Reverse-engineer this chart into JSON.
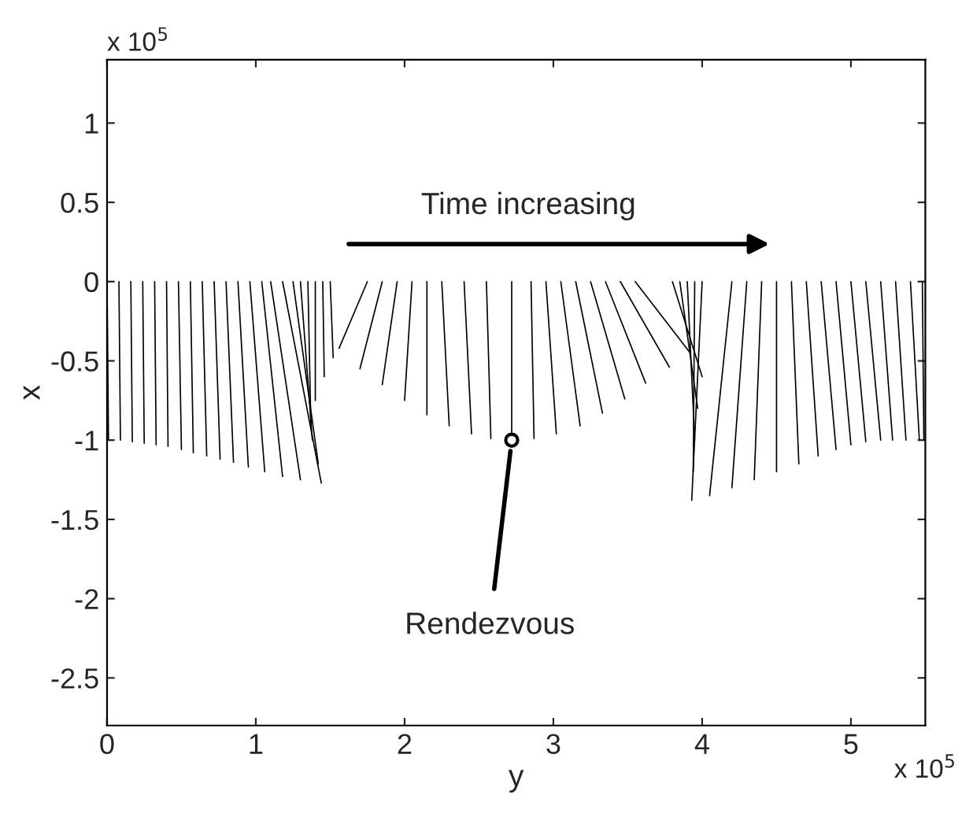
{
  "chart_data": {
    "type": "line",
    "xlabel": "y",
    "ylabel": "x",
    "xlim": [
      0,
      5.5
    ],
    "ylim": [
      -2.8,
      1.4
    ],
    "xticks": [
      0,
      1,
      2,
      3,
      4,
      5
    ],
    "yticks": [
      1,
      0.5,
      0,
      -0.5,
      -1,
      -1.5,
      -2,
      -2.5
    ],
    "marker": "none",
    "line_style": "solid",
    "annotations": [
      "Time increasing",
      {
        "text": "Rendezvous",
        "x": 2.72,
        "y": -1.0
      },
      "x 10$^{5}$",
      "x 10$^{5}$"
    ],
    "series": [
      {
        "color": "#000000",
        "x": [
          0,
          0.01
        ],
        "values": [
          0,
          -1.0
        ]
      },
      {
        "color": "#000000",
        "x": [
          0.08,
          0.09
        ],
        "values": [
          0,
          -1.0
        ]
      },
      {
        "color": "#000000",
        "x": [
          0.16,
          0.17
        ],
        "values": [
          0,
          -1.01
        ]
      },
      {
        "color": "#000000",
        "x": [
          0.24,
          0.25
        ],
        "values": [
          0,
          -1.02
        ]
      },
      {
        "color": "#000000",
        "x": [
          0.32,
          0.33
        ],
        "values": [
          0,
          -1.03
        ]
      },
      {
        "color": "#000000",
        "x": [
          0.4,
          0.41
        ],
        "values": [
          0,
          -1.04
        ]
      },
      {
        "color": "#000000",
        "x": [
          0.48,
          0.5
        ],
        "values": [
          0,
          -1.06
        ]
      },
      {
        "color": "#000000",
        "x": [
          0.56,
          0.58
        ],
        "values": [
          0,
          -1.08
        ]
      },
      {
        "color": "#000000",
        "x": [
          0.64,
          0.67
        ],
        "values": [
          0,
          -1.1
        ]
      },
      {
        "color": "#000000",
        "x": [
          0.72,
          0.76
        ],
        "values": [
          0,
          -1.12
        ]
      },
      {
        "color": "#000000",
        "x": [
          0.8,
          0.85
        ],
        "values": [
          0,
          -1.14
        ]
      },
      {
        "color": "#000000",
        "x": [
          0.88,
          0.95
        ],
        "values": [
          0,
          -1.17
        ]
      },
      {
        "color": "#000000",
        "x": [
          0.96,
          1.06
        ],
        "values": [
          0,
          -1.2
        ]
      },
      {
        "color": "#000000",
        "x": [
          1.04,
          1.18
        ],
        "values": [
          0,
          -1.23
        ]
      },
      {
        "color": "#000000",
        "x": [
          1.1,
          1.3
        ],
        "values": [
          0,
          -1.25
        ]
      },
      {
        "color": "#000000",
        "x": [
          1.18,
          1.44
        ],
        "values": [
          0,
          -1.27
        ]
      },
      {
        "color": "#000000",
        "x": [
          1.25,
          1.42
        ],
        "values": [
          0,
          -1.15
        ]
      },
      {
        "color": "#000000",
        "x": [
          1.3,
          1.38
        ],
        "values": [
          0,
          -1.0
        ]
      },
      {
        "color": "#000000",
        "x": [
          1.35,
          1.37
        ],
        "values": [
          0,
          -0.9
        ]
      },
      {
        "color": "#000000",
        "x": [
          1.4,
          1.4
        ],
        "values": [
          0,
          -0.75
        ]
      },
      {
        "color": "#000000",
        "x": [
          1.45,
          1.46
        ],
        "values": [
          0,
          -0.6
        ]
      },
      {
        "color": "#000000",
        "x": [
          1.5,
          1.52
        ],
        "values": [
          0,
          -0.48
        ]
      },
      {
        "color": "#000000",
        "x": [
          1.75,
          1.56
        ],
        "values": [
          0,
          -0.42
        ]
      },
      {
        "color": "#000000",
        "x": [
          1.85,
          1.7
        ],
        "values": [
          0,
          -0.55
        ]
      },
      {
        "color": "#000000",
        "x": [
          1.95,
          1.85
        ],
        "values": [
          0,
          -0.65
        ]
      },
      {
        "color": "#000000",
        "x": [
          2.05,
          2.0
        ],
        "values": [
          0,
          -0.75
        ]
      },
      {
        "color": "#000000",
        "x": [
          2.15,
          2.15
        ],
        "values": [
          0,
          -0.84
        ]
      },
      {
        "color": "#000000",
        "x": [
          2.25,
          2.3
        ],
        "values": [
          0,
          -0.91
        ]
      },
      {
        "color": "#000000",
        "x": [
          2.4,
          2.45
        ],
        "values": [
          0,
          -0.96
        ]
      },
      {
        "color": "#000000",
        "x": [
          2.55,
          2.58
        ],
        "values": [
          0,
          -0.99
        ]
      },
      {
        "color": "#000000",
        "x": [
          2.72,
          2.72
        ],
        "values": [
          0,
          -1.0
        ]
      },
      {
        "color": "#000000",
        "x": [
          2.85,
          2.87
        ],
        "values": [
          0,
          -0.99
        ]
      },
      {
        "color": "#000000",
        "x": [
          2.95,
          3.02
        ],
        "values": [
          0,
          -0.96
        ]
      },
      {
        "color": "#000000",
        "x": [
          3.05,
          3.18
        ],
        "values": [
          0,
          -0.91
        ]
      },
      {
        "color": "#000000",
        "x": [
          3.15,
          3.33
        ],
        "values": [
          0,
          -0.83
        ]
      },
      {
        "color": "#000000",
        "x": [
          3.25,
          3.48
        ],
        "values": [
          0,
          -0.74
        ]
      },
      {
        "color": "#000000",
        "x": [
          3.35,
          3.62
        ],
        "values": [
          0,
          -0.64
        ]
      },
      {
        "color": "#000000",
        "x": [
          3.45,
          3.78
        ],
        "values": [
          0,
          -0.54
        ]
      },
      {
        "color": "#000000",
        "x": [
          3.55,
          3.92
        ],
        "values": [
          0,
          -0.45
        ]
      },
      {
        "color": "#000000",
        "x": [
          3.8,
          4.0
        ],
        "values": [
          0,
          -0.6
        ]
      },
      {
        "color": "#000000",
        "x": [
          3.85,
          3.97
        ],
        "values": [
          0,
          -0.8
        ]
      },
      {
        "color": "#000000",
        "x": [
          3.9,
          3.95
        ],
        "values": [
          0,
          -1.0
        ]
      },
      {
        "color": "#000000",
        "x": [
          3.95,
          3.94
        ],
        "values": [
          0,
          -1.2
        ]
      },
      {
        "color": "#000000",
        "x": [
          4.0,
          3.93
        ],
        "values": [
          0,
          -1.38
        ]
      },
      {
        "color": "#000000",
        "x": [
          4.2,
          4.05
        ],
        "values": [
          0,
          -1.35
        ]
      },
      {
        "color": "#000000",
        "x": [
          4.3,
          4.2
        ],
        "values": [
          0,
          -1.3
        ]
      },
      {
        "color": "#000000",
        "x": [
          4.4,
          4.35
        ],
        "values": [
          0,
          -1.25
        ]
      },
      {
        "color": "#000000",
        "x": [
          4.5,
          4.5
        ],
        "values": [
          0,
          -1.2
        ]
      },
      {
        "color": "#000000",
        "x": [
          4.6,
          4.65
        ],
        "values": [
          0,
          -1.15
        ]
      },
      {
        "color": "#000000",
        "x": [
          4.7,
          4.78
        ],
        "values": [
          0,
          -1.1
        ]
      },
      {
        "color": "#000000",
        "x": [
          4.8,
          4.9
        ],
        "values": [
          0,
          -1.06
        ]
      },
      {
        "color": "#000000",
        "x": [
          4.9,
          5.0
        ],
        "values": [
          0,
          -1.03
        ]
      },
      {
        "color": "#000000",
        "x": [
          5.0,
          5.1
        ],
        "values": [
          0,
          -1.01
        ]
      },
      {
        "color": "#000000",
        "x": [
          5.1,
          5.2
        ],
        "values": [
          0,
          -1.0
        ]
      },
      {
        "color": "#000000",
        "x": [
          5.2,
          5.28
        ],
        "values": [
          0,
          -1.0
        ]
      },
      {
        "color": "#000000",
        "x": [
          5.3,
          5.37
        ],
        "values": [
          0,
          -1.0
        ]
      },
      {
        "color": "#000000",
        "x": [
          5.4,
          5.46
        ],
        "values": [
          0,
          -1.0
        ]
      },
      {
        "color": "#000000",
        "x": [
          5.48,
          5.49
        ],
        "values": [
          0,
          -1.0
        ]
      },
      {
        "type": "scatter",
        "color": "#000000",
        "marker": "circle",
        "x": [
          2.72
        ],
        "values": [
          -1.0
        ]
      }
    ]
  }
}
